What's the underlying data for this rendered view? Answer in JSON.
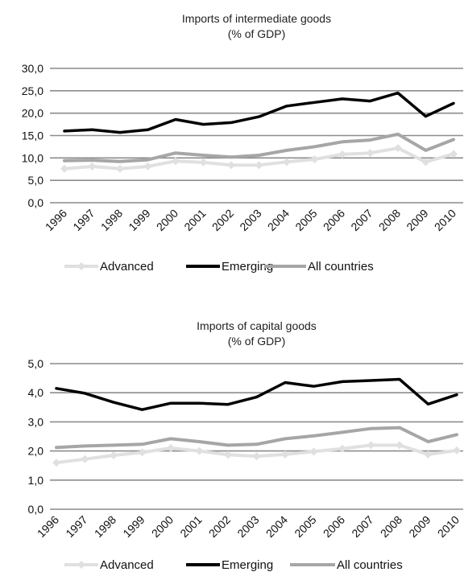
{
  "chart_data": [
    {
      "type": "line",
      "title": "Imports of intermediate goods",
      "subtitle": "(% of GDP)",
      "categories": [
        "1996",
        "1997",
        "1998",
        "1999",
        "2000",
        "2001",
        "2002",
        "2003",
        "2004",
        "2005",
        "2006",
        "2007",
        "2008",
        "2009",
        "2010"
      ],
      "ylim": [
        0,
        30
      ],
      "yticks": [
        "0,0",
        "5,0",
        "10,0",
        "15,0",
        "20,0",
        "25,0",
        "30,0"
      ],
      "grid": true,
      "legend_position": "bottom",
      "series": [
        {
          "name": "Advanced",
          "color": "#e0e0e0",
          "marker": "diamond",
          "values": [
            7.6,
            8.1,
            7.6,
            8.1,
            9.3,
            9.0,
            8.4,
            8.4,
            9.1,
            9.7,
            10.8,
            11.1,
            12.2,
            9.1,
            10.9
          ]
        },
        {
          "name": "Emerging",
          "color": "#000000",
          "marker": "none",
          "values": [
            16.0,
            16.3,
            15.7,
            16.3,
            18.6,
            17.5,
            17.9,
            19.2,
            21.6,
            22.4,
            23.2,
            22.7,
            24.5,
            19.3,
            22.2
          ]
        },
        {
          "name": "All countries",
          "color": "#a6a6a6",
          "marker": "none",
          "values": [
            9.4,
            9.5,
            9.2,
            9.6,
            11.1,
            10.6,
            10.2,
            10.6,
            11.7,
            12.5,
            13.6,
            14.0,
            15.3,
            11.7,
            14.1
          ]
        }
      ]
    },
    {
      "type": "line",
      "title": "Imports of capital goods",
      "subtitle": "(% of GDP)",
      "categories": [
        "1996",
        "1997",
        "1998",
        "1999",
        "2000",
        "2001",
        "2002",
        "2003",
        "2004",
        "2005",
        "2006",
        "2007",
        "2008",
        "2009",
        "2010"
      ],
      "ylim": [
        0,
        5
      ],
      "yticks": [
        "0,0",
        "1,0",
        "2,0",
        "3,0",
        "4,0",
        "5,0"
      ],
      "grid": true,
      "legend_position": "bottom",
      "series": [
        {
          "name": "Advanced",
          "color": "#e0e0e0",
          "marker": "diamond",
          "values": [
            1.6,
            1.72,
            1.85,
            1.95,
            2.1,
            2.0,
            1.87,
            1.82,
            1.88,
            1.98,
            2.08,
            2.2,
            2.2,
            1.88,
            2.02
          ]
        },
        {
          "name": "Emerging",
          "color": "#000000",
          "marker": "none",
          "values": [
            4.15,
            3.98,
            3.67,
            3.42,
            3.64,
            3.64,
            3.6,
            3.85,
            4.35,
            4.22,
            4.38,
            4.42,
            4.46,
            3.61,
            3.93
          ]
        },
        {
          "name": "All countries",
          "color": "#a6a6a6",
          "marker": "none",
          "values": [
            2.12,
            2.17,
            2.2,
            2.23,
            2.42,
            2.32,
            2.2,
            2.23,
            2.42,
            2.52,
            2.64,
            2.77,
            2.8,
            2.32,
            2.56
          ]
        }
      ]
    }
  ]
}
